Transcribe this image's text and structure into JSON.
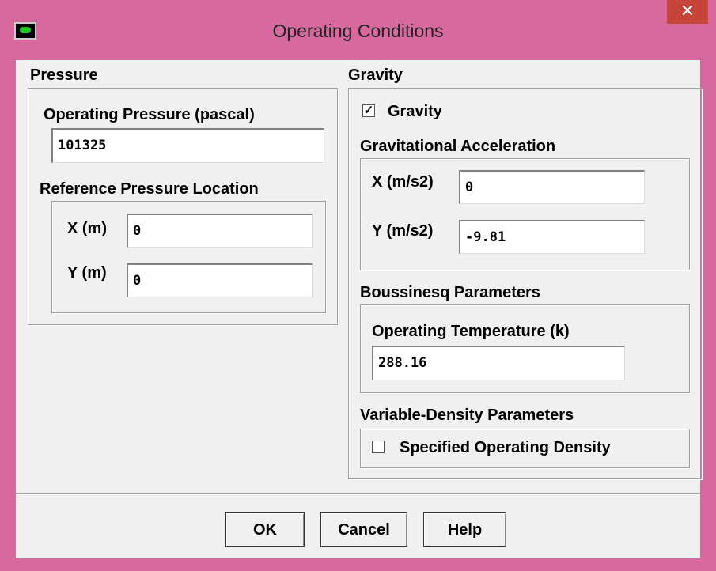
{
  "window": {
    "title": "Operating Conditions"
  },
  "pressure": {
    "label": "Pressure",
    "operating_pressure_label": "Operating Pressure (pascal)",
    "operating_pressure": "101325",
    "reference_label": "Reference Pressure Location",
    "x_label": "X (m)",
    "x": "0",
    "y_label": "Y (m)",
    "y": "0"
  },
  "gravity": {
    "label": "Gravity",
    "checkbox_label": "Gravity",
    "checked": true,
    "acceleration_label": "Gravitational Acceleration",
    "x_label": "X (m/s2)",
    "x": "0",
    "y_label": "Y (m/s2)",
    "y": "-9.81",
    "boussinesq_label": "Boussinesq Parameters",
    "temperature_label": "Operating Temperature (k)",
    "temperature": "288.16",
    "variable_density_label": "Variable-Density Parameters",
    "density_checkbox_label": "Specified Operating Density",
    "density_checked": false
  },
  "buttons": [
    "OK",
    "Cancel",
    "Help"
  ]
}
